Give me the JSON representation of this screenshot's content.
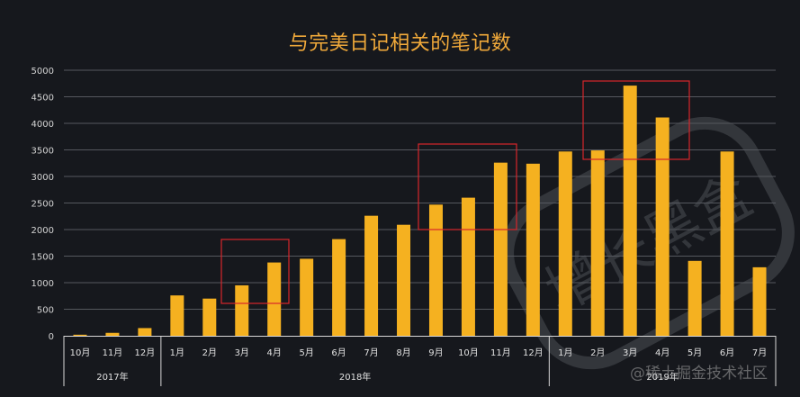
{
  "chart_data": {
    "type": "bar",
    "title": "与完美日记相关的笔记数",
    "xlabel": "",
    "ylabel": "",
    "ylim": [
      0,
      5000
    ],
    "yticks": [
      0,
      500,
      1000,
      1500,
      2000,
      2500,
      3000,
      3500,
      4000,
      4500,
      5000
    ],
    "grid": true,
    "legend": null,
    "bar_color": "#f5b120",
    "categories": [
      "10月",
      "11月",
      "12月",
      "1月",
      "2月",
      "3月",
      "4月",
      "5月",
      "6月",
      "7月",
      "8月",
      "9月",
      "10月",
      "11月",
      "12月",
      "1月",
      "2月",
      "3月",
      "4月",
      "5月",
      "6月",
      "7月"
    ],
    "groups": [
      {
        "label": "2017年",
        "start": 0,
        "count": 3
      },
      {
        "label": "2018年",
        "start": 3,
        "count": 12
      },
      {
        "label": "2019年",
        "start": 15,
        "count": 7
      }
    ],
    "values": [
      20,
      55,
      145,
      760,
      700,
      950,
      1380,
      1450,
      1820,
      2260,
      2090,
      2470,
      2600,
      3260,
      3240,
      3470,
      3490,
      4710,
      4110,
      1410,
      3470,
      1290
    ],
    "annotations": [
      {
        "type": "highlight-box",
        "covers": [
          "2018年3月",
          "2018年4月"
        ],
        "color": "#d8262b"
      },
      {
        "type": "highlight-box",
        "covers": [
          "2018年9月",
          "2018年10月",
          "2018年11月"
        ],
        "color": "#d8262b"
      },
      {
        "type": "highlight-box",
        "covers": [
          "2019年2月",
          "2019年3月",
          "2019年4月"
        ],
        "color": "#d8262b"
      }
    ]
  },
  "watermark": {
    "text": "@稀土掘金技术社区",
    "stamp_text": "增长黑盒"
  }
}
